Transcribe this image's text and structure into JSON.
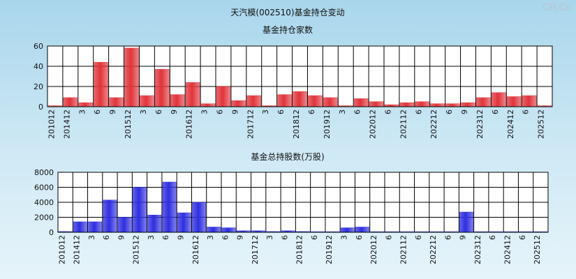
{
  "title": "天汽模(002510)基金持仓变动",
  "watermark": "CFi.Cn",
  "x_labels": [
    "201012",
    "",
    "201412",
    "",
    "3",
    "",
    "6",
    "",
    "9",
    "",
    "201512",
    "",
    "3",
    "",
    "6",
    "",
    "9",
    "",
    "201612",
    "",
    "3",
    "",
    "6",
    "",
    "9",
    "",
    "201712",
    "",
    "3",
    "",
    "6",
    "",
    "201812",
    "",
    "6",
    "",
    "201912",
    "",
    "3",
    "",
    "6",
    "",
    "202012",
    "",
    "6",
    "",
    "202112",
    "",
    "6",
    "",
    "202212",
    "",
    "6",
    "",
    "9",
    "",
    "202312",
    "",
    "6",
    "",
    "202412",
    "",
    "6",
    "",
    "202512",
    ""
  ],
  "colors": {
    "red": "#e0343a",
    "blue": "#2e2ee0",
    "grid": "#000000",
    "plot_bg": "#ffffff"
  },
  "chart_data": [
    {
      "type": "bar",
      "title": "基金持仓家数",
      "ylim": [
        0,
        60
      ],
      "yticks": [
        0,
        20,
        40,
        60
      ],
      "values": [
        1,
        9,
        4,
        44,
        9,
        58,
        11,
        37,
        12,
        24,
        3,
        20,
        6,
        11,
        1,
        12,
        15,
        11,
        9,
        1,
        8,
        5,
        2,
        4,
        5,
        3,
        3,
        4,
        9,
        14,
        10,
        11,
        1
      ]
    },
    {
      "type": "bar",
      "title": "基金总持股数(万股)",
      "ylim": [
        0,
        8000
      ],
      "yticks": [
        0,
        2000,
        4000,
        6000,
        8000
      ],
      "values": [
        100,
        1400,
        1400,
        4300,
        2000,
        6000,
        2300,
        6700,
        2600,
        4000,
        700,
        600,
        200,
        200,
        100,
        200,
        100,
        80,
        80,
        600,
        700,
        80,
        80,
        80,
        80,
        80,
        80,
        2700,
        80,
        80,
        80,
        80,
        80
      ]
    }
  ]
}
